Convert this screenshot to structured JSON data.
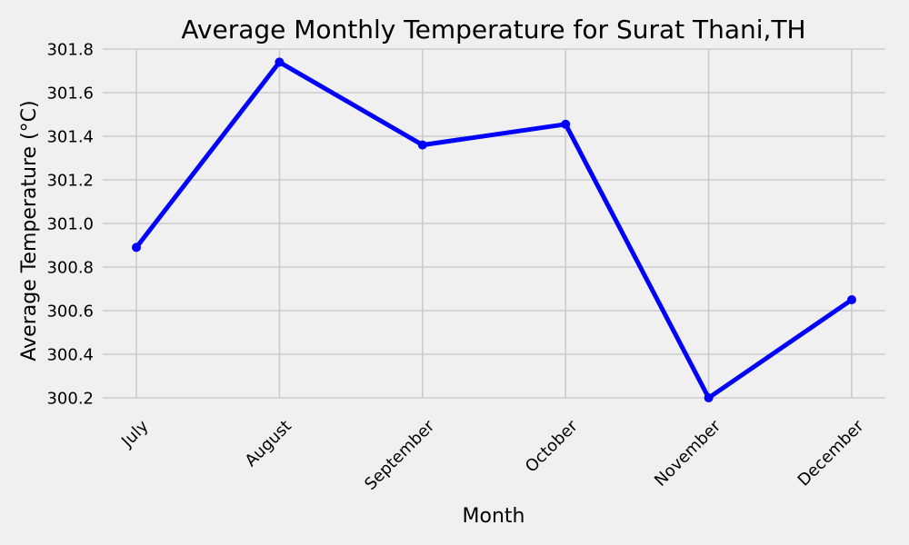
{
  "chart_data": {
    "type": "line",
    "title": "Average Monthly Temperature for Surat Thani,TH",
    "xlabel": "Month",
    "ylabel": "Average Temperature (°C)",
    "categories": [
      "July",
      "August",
      "September",
      "October",
      "November",
      "December"
    ],
    "series": [
      {
        "values": [
          300.89,
          301.74,
          301.36,
          301.455,
          300.2,
          300.65
        ],
        "color": "#0000ff",
        "marker": "circle"
      }
    ],
    "ylim": [
      300.2,
      301.8
    ],
    "yticks": [
      300.2,
      300.4,
      300.6,
      300.8,
      301.0,
      301.2,
      301.4,
      301.6,
      301.8
    ],
    "ytick_labels": [
      "300.2",
      "300.4",
      "300.6",
      "300.8",
      "301.0",
      "301.2",
      "301.4",
      "301.6",
      "301.8"
    ],
    "xtick_rotation": 45,
    "grid": true,
    "background": "#f0f0f0"
  }
}
